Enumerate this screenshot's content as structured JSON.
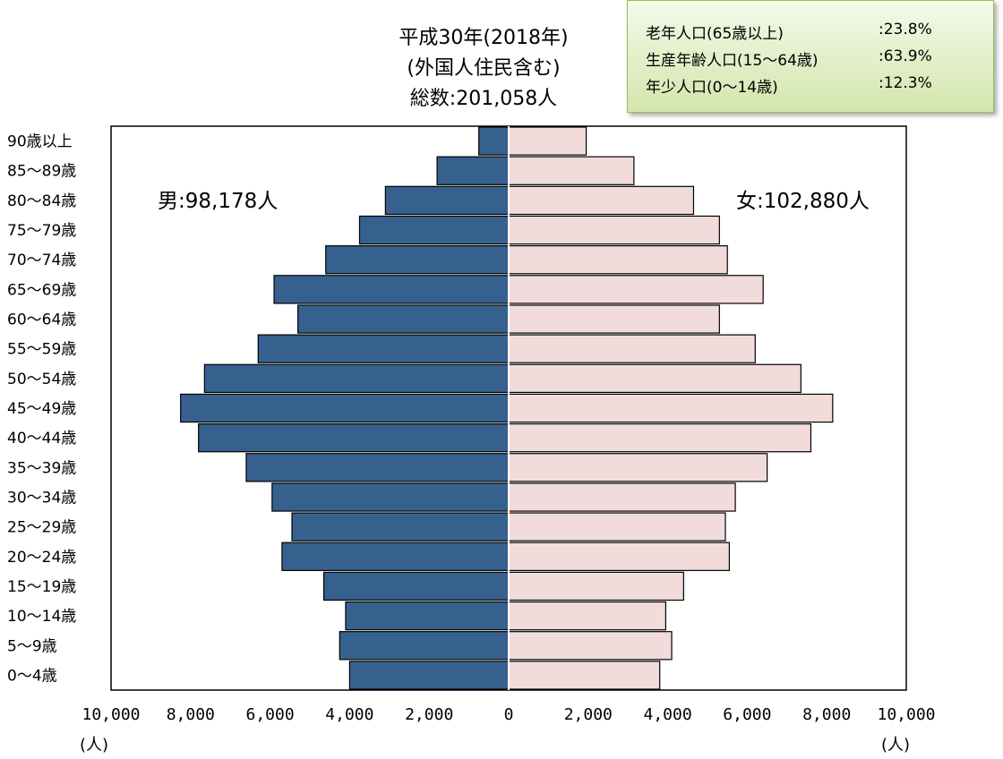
{
  "header": {
    "line1": "平成30年(2018年)",
    "line2": "(外国人住民含む)",
    "line3": "総数:201,058人"
  },
  "summary_box": {
    "items": [
      {
        "label": "老年人口(65歳以上)",
        "value": ":23.8%"
      },
      {
        "label": "生産年齢人口(15〜64歳)",
        "value": ":63.9%"
      },
      {
        "label": "年少人口(0〜14歳)",
        "value": ":12.3%"
      }
    ]
  },
  "male_total": "男:98,178人",
  "female_total": "女:102,880人",
  "colors": {
    "male": "#36618f",
    "female": "#f2dcdb",
    "border": "#000000"
  },
  "chart_data": {
    "type": "bar",
    "orientation": "horizontal-population-pyramid",
    "categories": [
      "0〜4歳",
      "5〜9歳",
      "10〜14歳",
      "15〜19歳",
      "20〜24歳",
      "25〜29歳",
      "30〜34歳",
      "35〜39歳",
      "40〜44歳",
      "45〜49歳",
      "50〜54歳",
      "55〜59歳",
      "60〜64歳",
      "65〜69歳",
      "70〜74歳",
      "75〜79歳",
      "80〜84歳",
      "85〜89歳",
      "90歳以上"
    ],
    "series": [
      {
        "name": "男",
        "values": [
          4000,
          4250,
          4100,
          4650,
          5700,
          5450,
          5950,
          6600,
          7800,
          8250,
          7650,
          6300,
          5300,
          5900,
          4600,
          3750,
          3100,
          1800,
          750
        ]
      },
      {
        "name": "女",
        "values": [
          3800,
          4100,
          3950,
          4400,
          5550,
          5450,
          5700,
          6500,
          7600,
          8150,
          7350,
          6200,
          5300,
          6400,
          5500,
          5300,
          4650,
          3150,
          1950
        ]
      }
    ],
    "xlim": [
      -10000,
      10000
    ],
    "x_ticks": [
      -10000,
      -8000,
      -6000,
      -4000,
      -2000,
      0,
      2000,
      4000,
      6000,
      8000,
      10000
    ],
    "x_tick_labels": [
      "10,000",
      "8,000",
      "6,000",
      "4,000",
      "2,000",
      "0",
      "2,000",
      "4,000",
      "6,000",
      "8,000",
      "10,000"
    ],
    "unit_left": "(人)",
    "unit_right": "(人)",
    "grid": false
  }
}
